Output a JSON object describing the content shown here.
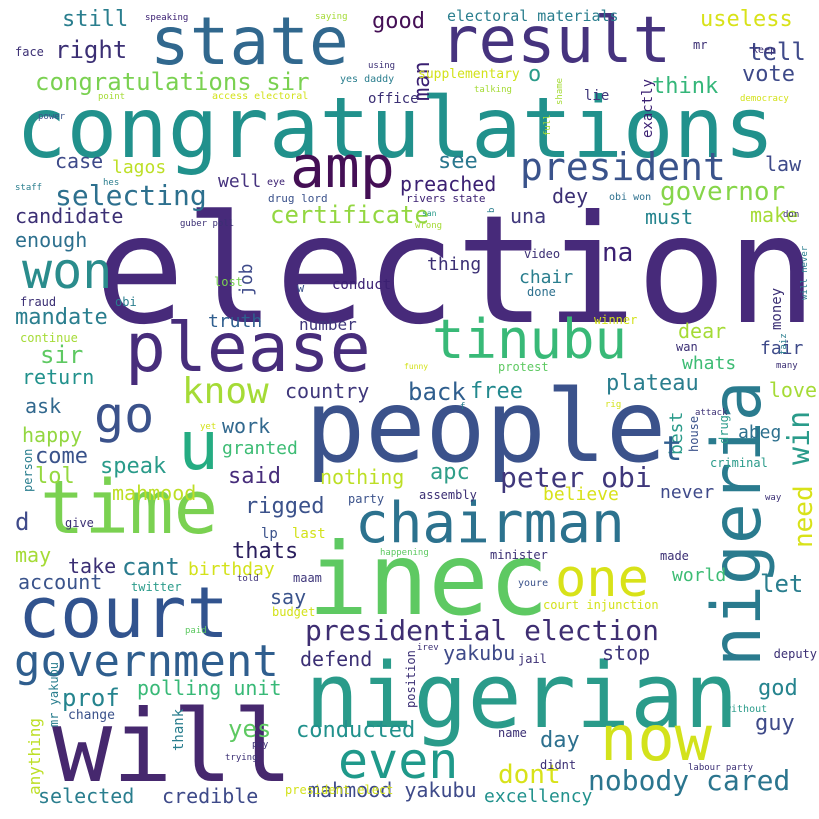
{
  "words": [
    {
      "text": "election",
      "color": "#472a7a"
    },
    {
      "text": "congratulations",
      "color": "#21918c"
    },
    {
      "text": "people",
      "color": "#3b528b"
    },
    {
      "text": "inec",
      "color": "#5ec962"
    },
    {
      "text": "will",
      "color": "#46286e"
    },
    {
      "text": "nigerian",
      "color": "#2a9b8a"
    },
    {
      "text": "state",
      "color": "#31688e"
    },
    {
      "text": "result",
      "color": "#46337e"
    },
    {
      "text": "time",
      "color": "#7ad151"
    },
    {
      "text": "court",
      "color": "#31538e"
    },
    {
      "text": "nigeria",
      "color": "#2a7b8e"
    },
    {
      "text": "please",
      "color": "#472d7b"
    },
    {
      "text": "chairman",
      "color": "#2c728e"
    },
    {
      "text": "tinubu",
      "color": "#38b977"
    },
    {
      "text": "amp",
      "color": "#440f55"
    },
    {
      "text": "won",
      "color": "#2a8c8c"
    },
    {
      "text": "go",
      "color": "#3b528b"
    },
    {
      "text": "u",
      "color": "#25ac82"
    },
    {
      "text": "one",
      "color": "#d8e219"
    },
    {
      "text": "now",
      "color": "#d3e21b"
    },
    {
      "text": "government",
      "color": "#2f5e8e"
    },
    {
      "text": "even",
      "color": "#1f998a"
    },
    {
      "text": "president",
      "color": "#3a538b"
    },
    {
      "text": "know",
      "color": "#a5db36"
    },
    {
      "text": "presidential election",
      "color": "#3e2e72"
    },
    {
      "text": "nobody cared",
      "color": "#2b758e"
    },
    {
      "text": "peter obi",
      "color": "#3f377b"
    },
    {
      "text": "governor",
      "color": "#86d549"
    },
    {
      "text": "selecting",
      "color": "#2d708e"
    },
    {
      "text": "certificate",
      "color": "#93d741"
    },
    {
      "text": "congratulations sir",
      "color": "#7ad151"
    },
    {
      "text": "still",
      "color": "#2a7e8e"
    },
    {
      "text": "right",
      "color": "#3b2f74"
    },
    {
      "text": "good",
      "color": "#440f55"
    },
    {
      "text": "tell",
      "color": "#3f4a8a"
    },
    {
      "text": "useless",
      "color": "#d8e219"
    },
    {
      "text": "vote",
      "color": "#3e4a89"
    },
    {
      "text": "think",
      "color": "#34b679"
    },
    {
      "text": "preached",
      "color": "#3b2072"
    },
    {
      "text": "see",
      "color": "#2a778e"
    },
    {
      "text": "dey",
      "color": "#3b2f74"
    },
    {
      "text": "case",
      "color": "#3e4a89"
    },
    {
      "text": "law",
      "color": "#3e4a89"
    },
    {
      "text": "candidate",
      "color": "#3b2f74"
    },
    {
      "text": "make",
      "color": "#a5db36"
    },
    {
      "text": "enough",
      "color": "#2d708e"
    },
    {
      "text": "must",
      "color": "#25848e"
    },
    {
      "text": "una",
      "color": "#3f377b"
    },
    {
      "text": "well",
      "color": "#46337e"
    },
    {
      "text": "sir",
      "color": "#5ec962"
    },
    {
      "text": "mandate",
      "color": "#2a7e8e"
    },
    {
      "text": "return",
      "color": "#21918c"
    },
    {
      "text": "ask",
      "color": "#31688e"
    },
    {
      "text": "happy",
      "color": "#93d741"
    },
    {
      "text": "come",
      "color": "#3a538b"
    },
    {
      "text": "lol",
      "color": "#95d840"
    },
    {
      "text": "speak",
      "color": "#2a9b8a"
    },
    {
      "text": "work",
      "color": "#31688e"
    },
    {
      "text": "said",
      "color": "#472d7b"
    },
    {
      "text": "granted",
      "color": "#3dbc74"
    },
    {
      "text": "country",
      "color": "#3f377b"
    },
    {
      "text": "back",
      "color": "#2f5e8e"
    },
    {
      "text": "free",
      "color": "#23898e"
    },
    {
      "text": "plateau",
      "color": "#2a7e8e"
    },
    {
      "text": "apc",
      "color": "#2f9e88"
    },
    {
      "text": "nothing",
      "color": "#bddf26"
    },
    {
      "text": "rigged",
      "color": "#3b528b"
    },
    {
      "text": "mahmood",
      "color": "#bddf26"
    },
    {
      "text": "d",
      "color": "#3f4a8a"
    },
    {
      "text": "thats",
      "color": "#2a1e5e"
    },
    {
      "text": "may",
      "color": "#a5db36"
    },
    {
      "text": "take",
      "color": "#3b2f74"
    },
    {
      "text": "cant",
      "color": "#2a7b8e"
    },
    {
      "text": "account",
      "color": "#3a538b"
    },
    {
      "text": "say",
      "color": "#3a538b"
    },
    {
      "text": "birthday",
      "color": "#d3e21b"
    },
    {
      "text": "defend",
      "color": "#3b2f74"
    },
    {
      "text": "yakubu",
      "color": "#3e4a89"
    },
    {
      "text": "stop",
      "color": "#3f377b"
    },
    {
      "text": "polling unit",
      "color": "#38b977"
    },
    {
      "text": "prof",
      "color": "#25848e"
    },
    {
      "text": "god",
      "color": "#25848e"
    },
    {
      "text": "guy",
      "color": "#3e4a89"
    },
    {
      "text": "day",
      "color": "#2d708e"
    },
    {
      "text": "yes",
      "color": "#5ec962"
    },
    {
      "text": "conducted",
      "color": "#21918c"
    },
    {
      "text": "dont",
      "color": "#d8e219"
    },
    {
      "text": "selected",
      "color": "#2a7e8e"
    },
    {
      "text": "credible",
      "color": "#3e4a89"
    },
    {
      "text": "mahmood yakubu",
      "color": "#3e4a89"
    },
    {
      "text": "excellency",
      "color": "#21918c"
    },
    {
      "text": "world",
      "color": "#3dbc74"
    },
    {
      "text": "let",
      "color": "#2a7e8e"
    },
    {
      "text": "love",
      "color": "#a5db36"
    },
    {
      "text": "fair",
      "color": "#3e4a89"
    },
    {
      "text": "dear",
      "color": "#a5db36"
    },
    {
      "text": "whats",
      "color": "#3dbc74"
    },
    {
      "text": "abeg",
      "color": "#2d708e"
    },
    {
      "text": "never",
      "color": "#3f4a8a"
    },
    {
      "text": "believe",
      "color": "#d8e219"
    },
    {
      "text": "best",
      "color": "#2a9b8a"
    },
    {
      "text": "win",
      "color": "#2a9b8a"
    },
    {
      "text": "need",
      "color": "#d8e219"
    },
    {
      "text": "t",
      "color": "#2f5e8e"
    },
    {
      "text": "na",
      "color": "#3b2072"
    },
    {
      "text": "thing",
      "color": "#3b2f74"
    },
    {
      "text": "chair",
      "color": "#2a7e8e"
    },
    {
      "text": "job",
      "color": "#3e4a89"
    },
    {
      "text": "truth",
      "color": "#2f5e8e"
    },
    {
      "text": "number",
      "color": "#3f377b"
    },
    {
      "text": "conduct",
      "color": "#3b2072"
    },
    {
      "text": "done",
      "color": "#2d708e"
    },
    {
      "text": "money",
      "color": "#3b2f74"
    },
    {
      "text": "lp",
      "color": "#3b528b"
    },
    {
      "text": "last",
      "color": "#d3e21b"
    },
    {
      "text": "maam",
      "color": "#3f377b"
    },
    {
      "text": "give",
      "color": "#3b2f74"
    },
    {
      "text": "man",
      "color": "#3b2072"
    },
    {
      "text": "o",
      "color": "#2a9b8a"
    },
    {
      "text": "electoral materials",
      "color": "#2a7e8e"
    },
    {
      "text": "supplementary",
      "color": "#d3e21b"
    },
    {
      "text": "office",
      "color": "#3b2f74"
    },
    {
      "text": "lagos",
      "color": "#bddf26"
    },
    {
      "text": "lie",
      "color": "#3f377b"
    },
    {
      "text": "exactly",
      "color": "#3b2072"
    },
    {
      "text": "mr",
      "color": "#3b2f74"
    },
    {
      "text": "keep",
      "color": "#3b2f74"
    },
    {
      "text": "face",
      "color": "#3b2f74"
    },
    {
      "text": "speaking",
      "color": "#3b2072"
    },
    {
      "text": "saying",
      "color": "#a5db36"
    },
    {
      "text": "using",
      "color": "#3b2f74"
    },
    {
      "text": "yes daddy",
      "color": "#2a7e8e"
    },
    {
      "text": "talking",
      "color": "#a5db36"
    },
    {
      "text": "shame",
      "color": "#a5db36"
    },
    {
      "text": "access electoral",
      "color": "#d3e21b"
    },
    {
      "text": "democracy",
      "color": "#d3e21b"
    },
    {
      "text": "point",
      "color": "#a5db36"
    },
    {
      "text": "full",
      "color": "#a5db36"
    },
    {
      "text": "power",
      "color": "#3a538b"
    },
    {
      "text": "staff",
      "color": "#2a7e8e"
    },
    {
      "text": "hes",
      "color": "#2a7e8e"
    },
    {
      "text": "eye",
      "color": "#3b2072"
    },
    {
      "text": "drug lord",
      "color": "#3b528b"
    },
    {
      "text": "rivers state",
      "color": "#3b2072"
    },
    {
      "text": "obi won",
      "color": "#2d708e"
    },
    {
      "text": "guber poll",
      "color": "#3b2f74"
    },
    {
      "text": "san",
      "color": "#2a9b8a"
    },
    {
      "text": "wrong",
      "color": "#a5db36"
    },
    {
      "text": "b",
      "color": "#2a7e8e"
    },
    {
      "text": "don",
      "color": "#3b2f74"
    },
    {
      "text": "lost",
      "color": "#7ad151"
    },
    {
      "text": "fraud",
      "color": "#3b2f74"
    },
    {
      "text": "obi",
      "color": "#2a7e8e"
    },
    {
      "text": "continue",
      "color": "#a5db36"
    },
    {
      "text": "w",
      "color": "#3b528b"
    },
    {
      "text": "video",
      "color": "#3b2f74"
    },
    {
      "text": "will never",
      "color": "#2a7e8e"
    },
    {
      "text": "winner",
      "color": "#d3e21b"
    },
    {
      "text": "wan",
      "color": "#3b2f74"
    },
    {
      "text": "faiz",
      "color": "#2a7e8e"
    },
    {
      "text": "many",
      "color": "#3b2f74"
    },
    {
      "text": "funny",
      "color": "#d3e21b"
    },
    {
      "text": "protest",
      "color": "#5ec962"
    },
    {
      "text": "f",
      "color": "#2a7e8e"
    },
    {
      "text": "rig",
      "color": "#d3e21b"
    },
    {
      "text": "attack",
      "color": "#3b2f74"
    },
    {
      "text": "yet",
      "color": "#d3e21b"
    },
    {
      "text": "house",
      "color": "#3b528b"
    },
    {
      "text": "drug",
      "color": "#2a9b8a"
    },
    {
      "text": "criminal",
      "color": "#2a9b8a"
    },
    {
      "text": "person",
      "color": "#2a7e8e"
    },
    {
      "text": "party",
      "color": "#3b528b"
    },
    {
      "text": "assembly",
      "color": "#3b2f74"
    },
    {
      "text": "way",
      "color": "#3b2f74"
    },
    {
      "text": "happening",
      "color": "#5ec962"
    },
    {
      "text": "minister",
      "color": "#3b2f74"
    },
    {
      "text": "made",
      "color": "#3b2f74"
    },
    {
      "text": "told",
      "color": "#3b2f74"
    },
    {
      "text": "twitter",
      "color": "#2a9b8a"
    },
    {
      "text": "youre",
      "color": "#3b528b"
    },
    {
      "text": "budget",
      "color": "#d3e21b"
    },
    {
      "text": "court injunction",
      "color": "#d3e21b"
    },
    {
      "text": "paid",
      "color": "#5ec962"
    },
    {
      "text": "position",
      "color": "#3b2f74"
    },
    {
      "text": "irev",
      "color": "#3b2f74"
    },
    {
      "text": "jail",
      "color": "#3b2f74"
    },
    {
      "text": "deputy",
      "color": "#3b2f74"
    },
    {
      "text": "anything",
      "color": "#bddf26"
    },
    {
      "text": "mr yakubu",
      "color": "#2a7e8e"
    },
    {
      "text": "change",
      "color": "#3b528b"
    },
    {
      "text": "thank",
      "color": "#2a7e8e"
    },
    {
      "text": "pay",
      "color": "#3b2f74"
    },
    {
      "text": "trying",
      "color": "#3b2f74"
    },
    {
      "text": "name",
      "color": "#3b2f74"
    },
    {
      "text": "didnt",
      "color": "#3b2f74"
    },
    {
      "text": "without",
      "color": "#2a9b8a"
    },
    {
      "text": "labour party",
      "color": "#3b2f74"
    },
    {
      "text": "president elect",
      "color": "#d3e21b"
    },
    {
      "text": "pvc",
      "color": "#3b2f74"
    }
  ]
}
